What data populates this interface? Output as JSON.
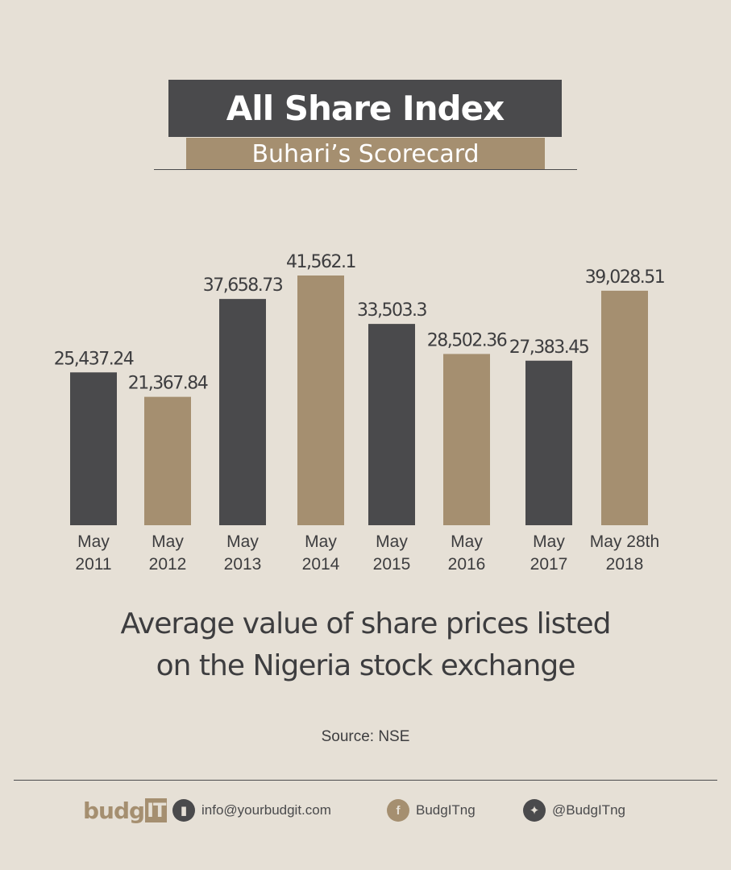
{
  "header": {
    "title": "All Share Index",
    "subtitle": "Buhari’s Scorecard"
  },
  "chart_data": {
    "type": "bar",
    "categories": [
      [
        "May",
        "2011"
      ],
      [
        "May",
        "2012"
      ],
      [
        "May",
        "2013"
      ],
      [
        "May",
        "2014"
      ],
      [
        "May",
        "2015"
      ],
      [
        "May",
        "2016"
      ],
      [
        "May",
        "2017"
      ],
      [
        "May 28th",
        "2018"
      ]
    ],
    "values": [
      25437.24,
      21367.84,
      37658.73,
      41562.1,
      33503.3,
      28502.36,
      27383.45,
      39028.51
    ],
    "value_labels": [
      "25,437.24",
      "21,367.84",
      "37,658.73",
      "41,562.1",
      "33,503.3",
      "28,502.36",
      "27,383.45",
      "39,028.51"
    ],
    "bar_colors": [
      "#4a4a4c",
      "#a58f70",
      "#4a4a4c",
      "#a58f70",
      "#4a4a4c",
      "#a58f70",
      "#4a4a4c",
      "#a58f70"
    ],
    "grid": false,
    "legend": "none"
  },
  "caption": {
    "line1": "Average value of share prices listed",
    "line2": "on the Nigeria stock exchange"
  },
  "source": "Source: NSE",
  "footer": {
    "logo_main": "budg",
    "logo_it": "IT",
    "email": "info@yourbudgit.com",
    "email_icon": "mail-icon",
    "facebook": "BudgITng",
    "facebook_icon": "facebook-icon",
    "twitter": "@BudgITng",
    "twitter_icon": "twitter-icon"
  },
  "colors": {
    "background": "#e6e0d6",
    "dark": "#4a4a4c",
    "tan": "#a58f70"
  }
}
